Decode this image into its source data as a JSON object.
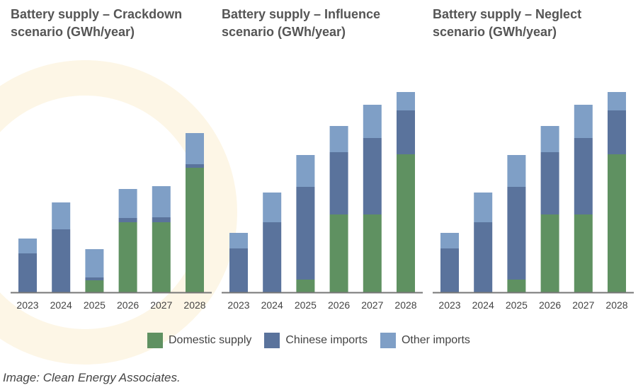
{
  "chart_data": [
    {
      "type": "bar",
      "stacked": true,
      "title": "Battery supply – Crackdown scenario (GWh/year)",
      "categories": [
        "2023",
        "2024",
        "2025",
        "2026",
        "2027",
        "2028"
      ],
      "series": [
        {
          "name": "Domestic supply",
          "values": [
            0,
            0,
            8.5,
            49.5,
            49.5,
            88
          ]
        },
        {
          "name": "Chinese imports",
          "values": [
            27.5,
            44.5,
            2,
            3,
            3.5,
            2.5
          ]
        },
        {
          "name": "Other imports",
          "values": [
            10.5,
            19,
            20,
            20.5,
            22,
            22
          ]
        }
      ]
    },
    {
      "type": "bar",
      "stacked": true,
      "title": "Battery supply – Influence scenario (GWh/year)",
      "categories": [
        "2023",
        "2024",
        "2025",
        "2026",
        "2027",
        "2028"
      ],
      "series": [
        {
          "name": "Domestic supply",
          "values": [
            0,
            0,
            9,
            55,
            55,
            97.5
          ]
        },
        {
          "name": "Chinese imports",
          "values": [
            31,
            49.5,
            65.5,
            44,
            54,
            31
          ]
        },
        {
          "name": "Other imports",
          "values": [
            11,
            21,
            22.5,
            18.5,
            23.5,
            13
          ]
        }
      ]
    },
    {
      "type": "bar",
      "stacked": true,
      "title": "Battery supply – Neglect scenario (GWh/year)",
      "categories": [
        "2023",
        "2024",
        "2025",
        "2026",
        "2027",
        "2028"
      ],
      "series": [
        {
          "name": "Domestic supply",
          "values": [
            0,
            0,
            9,
            55,
            55,
            97.5
          ]
        },
        {
          "name": "Chinese imports",
          "values": [
            31,
            49.5,
            65.5,
            44,
            54,
            31
          ]
        },
        {
          "name": "Other imports",
          "values": [
            11,
            21,
            22.5,
            18.5,
            23.5,
            13
          ]
        }
      ]
    }
  ],
  "titles": [
    [
      "Battery supply – Crackdown",
      "scenario (GWh/year)"
    ],
    [
      "Battery supply – Influence",
      "scenario (GWh/year)"
    ],
    [
      "Battery supply – Neglect",
      "scenario (GWh/year)"
    ]
  ],
  "legend": [
    {
      "label": "Domestic supply",
      "color": "#5f9161"
    },
    {
      "label": "Chinese imports",
      "color": "#5a739c"
    },
    {
      "label": "Other imports",
      "color": "#7f9fc6"
    }
  ],
  "caption": "Image: Clean Energy Associates."
}
